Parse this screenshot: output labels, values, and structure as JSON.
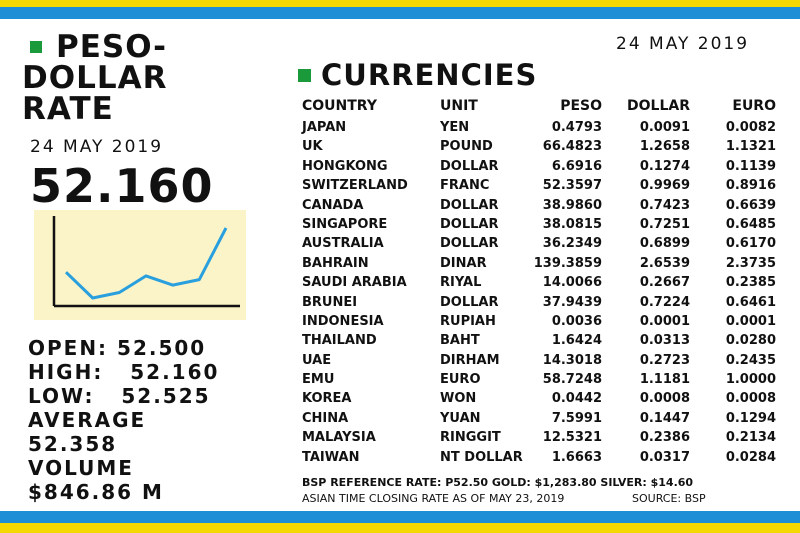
{
  "colors": {
    "yellow": "#f5d800",
    "blue": "#1e8fd6",
    "green": "#1a9a3a",
    "chart_bg": "#fbf4c9",
    "chart_line": "#2a9fdd"
  },
  "left": {
    "title_line1": "PESO-",
    "title_line2": "DOLLAR",
    "title_line3": "RATE",
    "date": "24 MAY 2019",
    "rate": "52.160",
    "open_label": "OPEN:",
    "open_value": "52.500",
    "high_label": "HIGH:",
    "high_value": "52.160",
    "low_label": "LOW:",
    "low_value": "52.525",
    "average_label": "AVERAGE",
    "average_value": "52.358",
    "volume_label": "VOLUME",
    "volume_value": "$846.86 M"
  },
  "chart_data": {
    "type": "line",
    "values": [
      52.42,
      52.56,
      52.53,
      52.44,
      52.49,
      52.46,
      52.18
    ],
    "grid": false
  },
  "right": {
    "date": "24 MAY 2019",
    "title": "CURRENCIES",
    "headers": {
      "country": "COUNTRY",
      "unit": "UNIT",
      "peso": "PESO",
      "dollar": "DOLLAR",
      "euro": "EURO"
    },
    "rows": [
      {
        "country": "JAPAN",
        "unit": "YEN",
        "peso": "0.4793",
        "dollar": "0.0091",
        "euro": "0.0082"
      },
      {
        "country": "UK",
        "unit": "POUND",
        "peso": "66.4823",
        "dollar": "1.2658",
        "euro": "1.1321"
      },
      {
        "country": "HONGKONG",
        "unit": "DOLLAR",
        "peso": "6.6916",
        "dollar": "0.1274",
        "euro": "0.1139"
      },
      {
        "country": "SWITZERLAND",
        "unit": "FRANC",
        "peso": "52.3597",
        "dollar": "0.9969",
        "euro": "0.8916"
      },
      {
        "country": "CANADA",
        "unit": "DOLLAR",
        "peso": "38.9860",
        "dollar": "0.7423",
        "euro": "0.6639"
      },
      {
        "country": "SINGAPORE",
        "unit": "DOLLAR",
        "peso": "38.0815",
        "dollar": "0.7251",
        "euro": "0.6485"
      },
      {
        "country": "AUSTRALIA",
        "unit": "DOLLAR",
        "peso": "36.2349",
        "dollar": "0.6899",
        "euro": "0.6170"
      },
      {
        "country": "BAHRAIN",
        "unit": "DINAR",
        "peso": "139.3859",
        "dollar": "2.6539",
        "euro": "2.3735"
      },
      {
        "country": "SAUDI ARABIA",
        "unit": "RIYAL",
        "peso": "14.0066",
        "dollar": "0.2667",
        "euro": "0.2385"
      },
      {
        "country": "BRUNEI",
        "unit": "DOLLAR",
        "peso": "37.9439",
        "dollar": "0.7224",
        "euro": "0.6461"
      },
      {
        "country": "INDONESIA",
        "unit": "RUPIAH",
        "peso": "0.0036",
        "dollar": "0.0001",
        "euro": "0.0001"
      },
      {
        "country": "THAILAND",
        "unit": "BAHT",
        "peso": "1.6424",
        "dollar": "0.0313",
        "euro": "0.0280"
      },
      {
        "country": "UAE",
        "unit": "DIRHAM",
        "peso": "14.3018",
        "dollar": "0.2723",
        "euro": "0.2435"
      },
      {
        "country": "EMU",
        "unit": "EURO",
        "peso": "58.7248",
        "dollar": "1.1181",
        "euro": "1.0000"
      },
      {
        "country": "KOREA",
        "unit": "WON",
        "peso": "0.0442",
        "dollar": "0.0008",
        "euro": "0.0008"
      },
      {
        "country": "CHINA",
        "unit": "YUAN",
        "peso": "7.5991",
        "dollar": "0.1447",
        "euro": "0.1294"
      },
      {
        "country": "MALAYSIA",
        "unit": "RINGGIT",
        "peso": "12.5321",
        "dollar": "0.2386",
        "euro": "0.2134"
      },
      {
        "country": "TAIWAN",
        "unit": "NT DOLLAR",
        "peso": "1.6663",
        "dollar": "0.0317",
        "euro": "0.0284"
      }
    ],
    "footer_rates": "BSP REFERENCE RATE: P52.50 GOLD: $1,283.80  SILVER: $14.60",
    "footer_note": "ASIAN TIME CLOSING RATE AS OF  MAY 23, 2019",
    "footer_source": "SOURCE: BSP"
  }
}
